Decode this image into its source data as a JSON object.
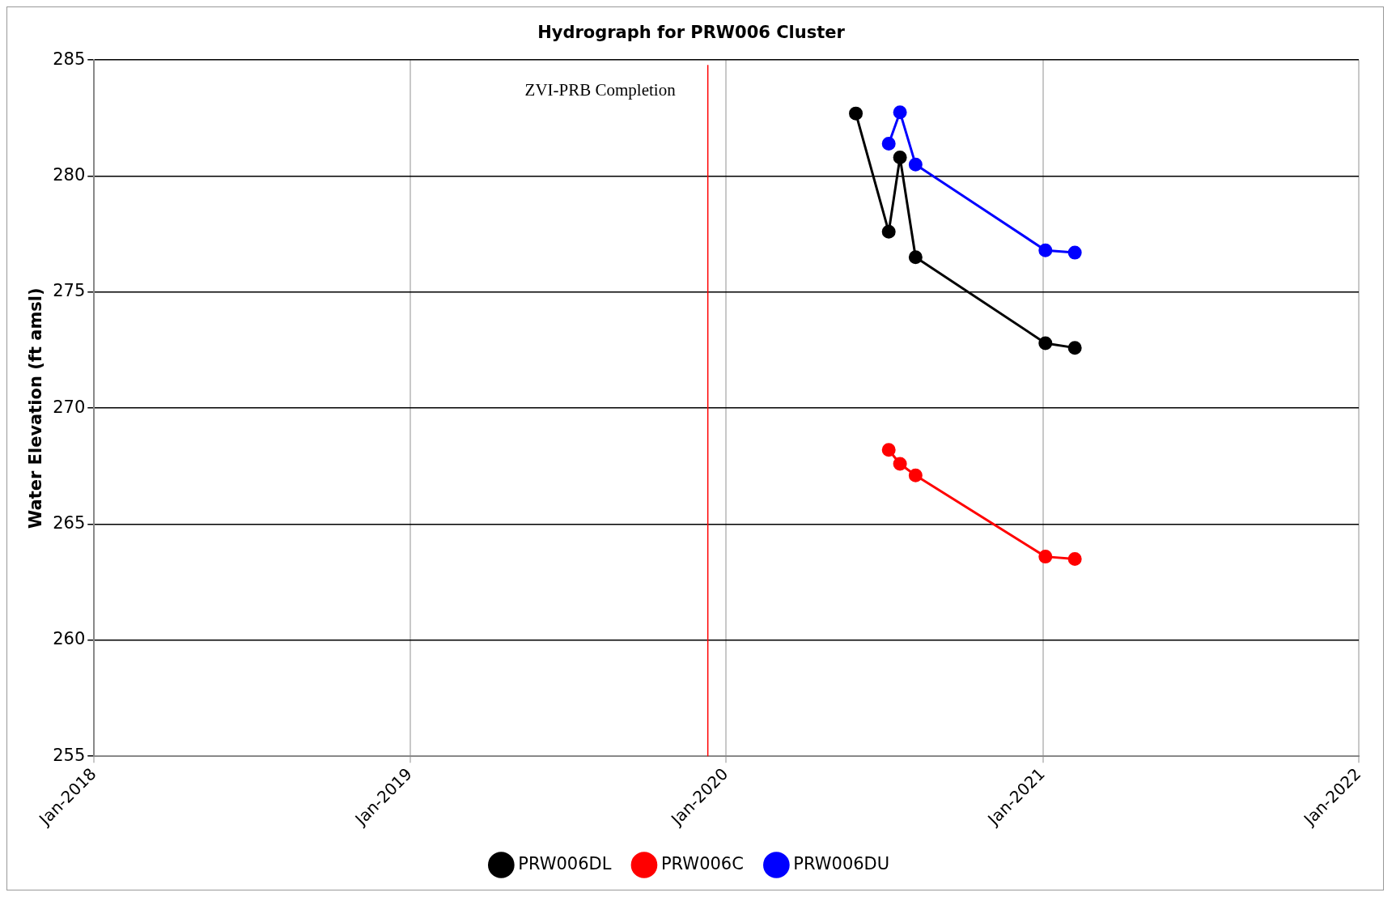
{
  "chart_data": {
    "type": "line",
    "title": "Hydrograph for PRW006 Cluster",
    "ylabel": "Water Elevation (ft amsl)",
    "xlim": [
      "2018-01-01",
      "2022-01-01"
    ],
    "xticks": [
      {
        "value": "2018-01-01",
        "label": "Jan-2018"
      },
      {
        "value": "2019-01-01",
        "label": "Jan-2019"
      },
      {
        "value": "2020-01-01",
        "label": "Jan-2020"
      },
      {
        "value": "2021-01-01",
        "label": "Jan-2021"
      },
      {
        "value": "2022-01-01",
        "label": "Jan-2022"
      }
    ],
    "ylim": [
      255,
      285
    ],
    "yticks": [
      255,
      260,
      265,
      270,
      275,
      280,
      285
    ],
    "grid": true,
    "legend": "bottom",
    "marker": "circle",
    "line_style": "solid",
    "ref_lines": [
      {
        "axis": "x",
        "value": "2019-12-11",
        "label": "ZVI-PRB Completion",
        "color": "#ff0000"
      }
    ],
    "series": [
      {
        "name": "PRW006DL",
        "color": "#000000",
        "x": [
          "2020-05-30",
          "2020-07-07",
          "2020-07-20",
          "2020-08-07",
          "2021-01-04",
          "2021-02-07"
        ],
        "values": [
          282.7,
          277.6,
          280.8,
          276.5,
          272.8,
          272.6
        ]
      },
      {
        "name": "PRW006C",
        "color": "#ff0000",
        "x": [
          "2020-07-07",
          "2020-07-20",
          "2020-08-07",
          "2021-01-04",
          "2021-02-07"
        ],
        "values": [
          268.2,
          267.6,
          267.1,
          263.6,
          263.5
        ]
      },
      {
        "name": "PRW006DU",
        "color": "#0000ff",
        "x": [
          "2020-07-07",
          "2020-07-20",
          "2020-08-07",
          "2021-01-04",
          "2021-02-07"
        ],
        "values": [
          281.4,
          282.75,
          280.5,
          276.8,
          276.7
        ]
      }
    ]
  }
}
